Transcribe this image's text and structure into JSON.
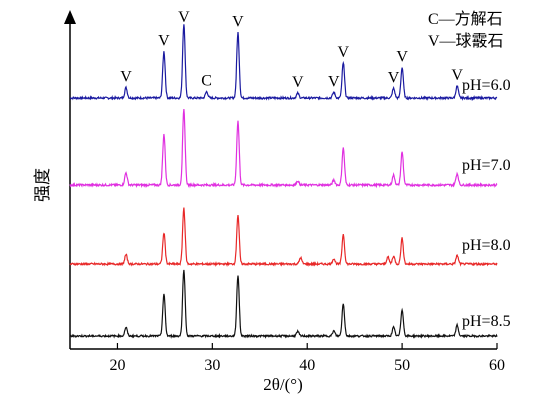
{
  "chart_data": {
    "type": "line",
    "xlabel": "2θ/(°)",
    "ylabel": "强度",
    "xlim": [
      15,
      60
    ],
    "xticks": [
      20,
      30,
      40,
      50,
      60
    ],
    "x_tick_labels": [
      "20",
      "30",
      "40",
      "50",
      "60"
    ],
    "legend": {
      "placement": "top-right",
      "entries": [
        "C—方解石",
        "V—球霰石"
      ]
    },
    "series": [
      {
        "name": "pH=6.0",
        "color": "#1a1aa0",
        "peaks": [
          {
            "x": 20.9,
            "h": 0.13
          },
          {
            "x": 24.9,
            "h": 0.58
          },
          {
            "x": 27.0,
            "h": 0.93
          },
          {
            "x": 29.4,
            "h": 0.08
          },
          {
            "x": 32.7,
            "h": 0.82
          },
          {
            "x": 39.0,
            "h": 0.06
          },
          {
            "x": 42.8,
            "h": 0.07
          },
          {
            "x": 43.8,
            "h": 0.44
          },
          {
            "x": 49.1,
            "h": 0.12
          },
          {
            "x": 50.0,
            "h": 0.38
          },
          {
            "x": 55.8,
            "h": 0.15
          }
        ],
        "annotations": [
          {
            "x": 20.9,
            "label": "V"
          },
          {
            "x": 24.9,
            "label": "V"
          },
          {
            "x": 27.0,
            "label": "V"
          },
          {
            "x": 29.4,
            "label": "C"
          },
          {
            "x": 32.7,
            "label": "V"
          },
          {
            "x": 39.0,
            "label": "V"
          },
          {
            "x": 42.8,
            "label": "V"
          },
          {
            "x": 43.8,
            "label": "V"
          },
          {
            "x": 49.1,
            "label": "V"
          },
          {
            "x": 50.0,
            "label": "V"
          },
          {
            "x": 55.8,
            "label": "V"
          }
        ]
      },
      {
        "name": "pH=7.0",
        "color": "#e030e0",
        "peaks": [
          {
            "x": 20.9,
            "h": 0.15
          },
          {
            "x": 24.9,
            "h": 0.62
          },
          {
            "x": 27.0,
            "h": 0.92
          },
          {
            "x": 32.7,
            "h": 0.78
          },
          {
            "x": 39.0,
            "h": 0.05
          },
          {
            "x": 42.8,
            "h": 0.06
          },
          {
            "x": 43.8,
            "h": 0.45
          },
          {
            "x": 49.1,
            "h": 0.12
          },
          {
            "x": 50.0,
            "h": 0.4
          },
          {
            "x": 55.8,
            "h": 0.14
          }
        ]
      },
      {
        "name": "pH=8.0",
        "color": "#e82828",
        "peaks": [
          {
            "x": 20.9,
            "h": 0.12
          },
          {
            "x": 24.9,
            "h": 0.4
          },
          {
            "x": 27.0,
            "h": 0.72
          },
          {
            "x": 32.7,
            "h": 0.63
          },
          {
            "x": 39.3,
            "h": 0.08
          },
          {
            "x": 42.8,
            "h": 0.07
          },
          {
            "x": 43.8,
            "h": 0.38
          },
          {
            "x": 48.5,
            "h": 0.09
          },
          {
            "x": 49.1,
            "h": 0.1
          },
          {
            "x": 50.0,
            "h": 0.33
          },
          {
            "x": 55.8,
            "h": 0.11
          }
        ]
      },
      {
        "name": "pH=8.5",
        "color": "#111111",
        "peaks": [
          {
            "x": 20.9,
            "h": 0.12
          },
          {
            "x": 24.9,
            "h": 0.58
          },
          {
            "x": 27.0,
            "h": 0.93
          },
          {
            "x": 32.7,
            "h": 0.85
          },
          {
            "x": 39.0,
            "h": 0.06
          },
          {
            "x": 42.8,
            "h": 0.07
          },
          {
            "x": 43.8,
            "h": 0.45
          },
          {
            "x": 49.1,
            "h": 0.12
          },
          {
            "x": 50.0,
            "h": 0.37
          },
          {
            "x": 55.8,
            "h": 0.15
          }
        ]
      }
    ]
  }
}
